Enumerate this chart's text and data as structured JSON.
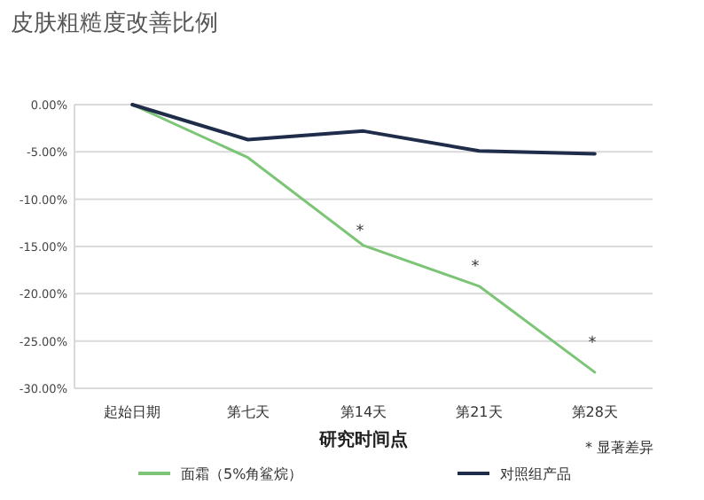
{
  "chart_data": {
    "type": "line",
    "title": "皮肤粗糙度改善比例",
    "xlabel": "研究时间点",
    "categories": [
      "起始日期",
      "第七天",
      "第14天",
      "第21天",
      "第28天"
    ],
    "series": [
      {
        "name": "面霜（5%角鲨烷）",
        "color": "#7cc576",
        "values": [
          0,
          -5.6,
          -14.9,
          -19.2,
          -28.3
        ]
      },
      {
        "name": "对照组产品",
        "color": "#1f2d4a",
        "values": [
          0,
          -3.7,
          -2.8,
          -4.9,
          -5.2
        ]
      }
    ],
    "ylim": [
      -30,
      0
    ],
    "yticks": [
      {
        "value": 0,
        "label": "0.00%"
      },
      {
        "value": -5,
        "label": "-5.00%"
      },
      {
        "value": -10,
        "label": "-10.00%"
      },
      {
        "value": -15,
        "label": "-15.00%"
      },
      {
        "value": -20,
        "label": "-20.00%"
      },
      {
        "value": -25,
        "label": "-25.00%"
      },
      {
        "value": -30,
        "label": "-30.00%"
      }
    ],
    "grid": "y",
    "legend": "bottom",
    "marker": "none",
    "line_style": "solid",
    "annotations": [
      "*",
      "*",
      "*",
      "* 显著差异"
    ]
  }
}
